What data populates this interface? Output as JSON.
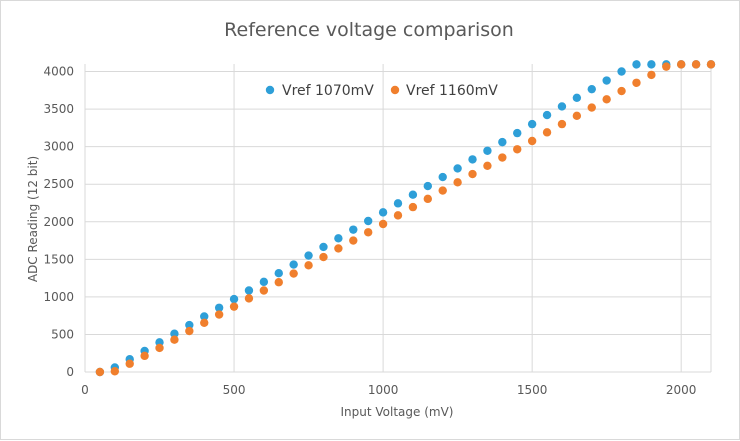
{
  "chart_data": {
    "type": "scatter",
    "title": "Reference voltage comparison",
    "xlabel": "Input Voltage (mV)",
    "ylabel": "ADC Reading (12 bit)",
    "xlim": [
      0,
      2100
    ],
    "ylim": [
      0,
      4100
    ],
    "xticks": [
      0,
      500,
      1000,
      1500,
      2000
    ],
    "yticks": [
      0,
      500,
      1000,
      1500,
      2000,
      2500,
      3000,
      3500,
      4000
    ],
    "grid": true,
    "legend": "top-left",
    "series": [
      {
        "name": "Vref 1070mV",
        "color": "#2E9FD8",
        "x": [
          50,
          100,
          150,
          200,
          250,
          300,
          350,
          400,
          450,
          500,
          550,
          600,
          650,
          700,
          750,
          800,
          850,
          900,
          950,
          1000,
          1050,
          1100,
          1150,
          1200,
          1250,
          1300,
          1350,
          1400,
          1450,
          1500,
          1550,
          1600,
          1650,
          1700,
          1750,
          1800,
          1850,
          1900,
          1950,
          2000,
          2050,
          2100
        ],
        "y": [
          0,
          60,
          170,
          280,
          395,
          510,
          625,
          740,
          855,
          970,
          1085,
          1200,
          1315,
          1430,
          1550,
          1665,
          1780,
          1895,
          2010,
          2125,
          2245,
          2360,
          2475,
          2595,
          2710,
          2830,
          2945,
          3060,
          3180,
          3300,
          3420,
          3535,
          3650,
          3765,
          3880,
          4000,
          4095,
          4095,
          4095,
          4095,
          4095,
          4095
        ]
      },
      {
        "name": "Vref 1160mV",
        "color": "#F07F2D",
        "x": [
          50,
          100,
          150,
          200,
          250,
          300,
          350,
          400,
          450,
          500,
          550,
          600,
          650,
          700,
          750,
          800,
          850,
          900,
          950,
          1000,
          1050,
          1100,
          1150,
          1200,
          1250,
          1300,
          1350,
          1400,
          1450,
          1500,
          1550,
          1600,
          1650,
          1700,
          1750,
          1800,
          1850,
          1900,
          1950,
          2000,
          2050,
          2100
        ],
        "y": [
          0,
          10,
          110,
          215,
          320,
          430,
          545,
          655,
          765,
          870,
          980,
          1085,
          1195,
          1310,
          1420,
          1530,
          1645,
          1750,
          1860,
          1970,
          2085,
          2195,
          2305,
          2415,
          2525,
          2635,
          2745,
          2855,
          2965,
          3075,
          3190,
          3300,
          3410,
          3520,
          3630,
          3740,
          3850,
          3955,
          4065,
          4095,
          4095,
          4095
        ]
      }
    ]
  }
}
